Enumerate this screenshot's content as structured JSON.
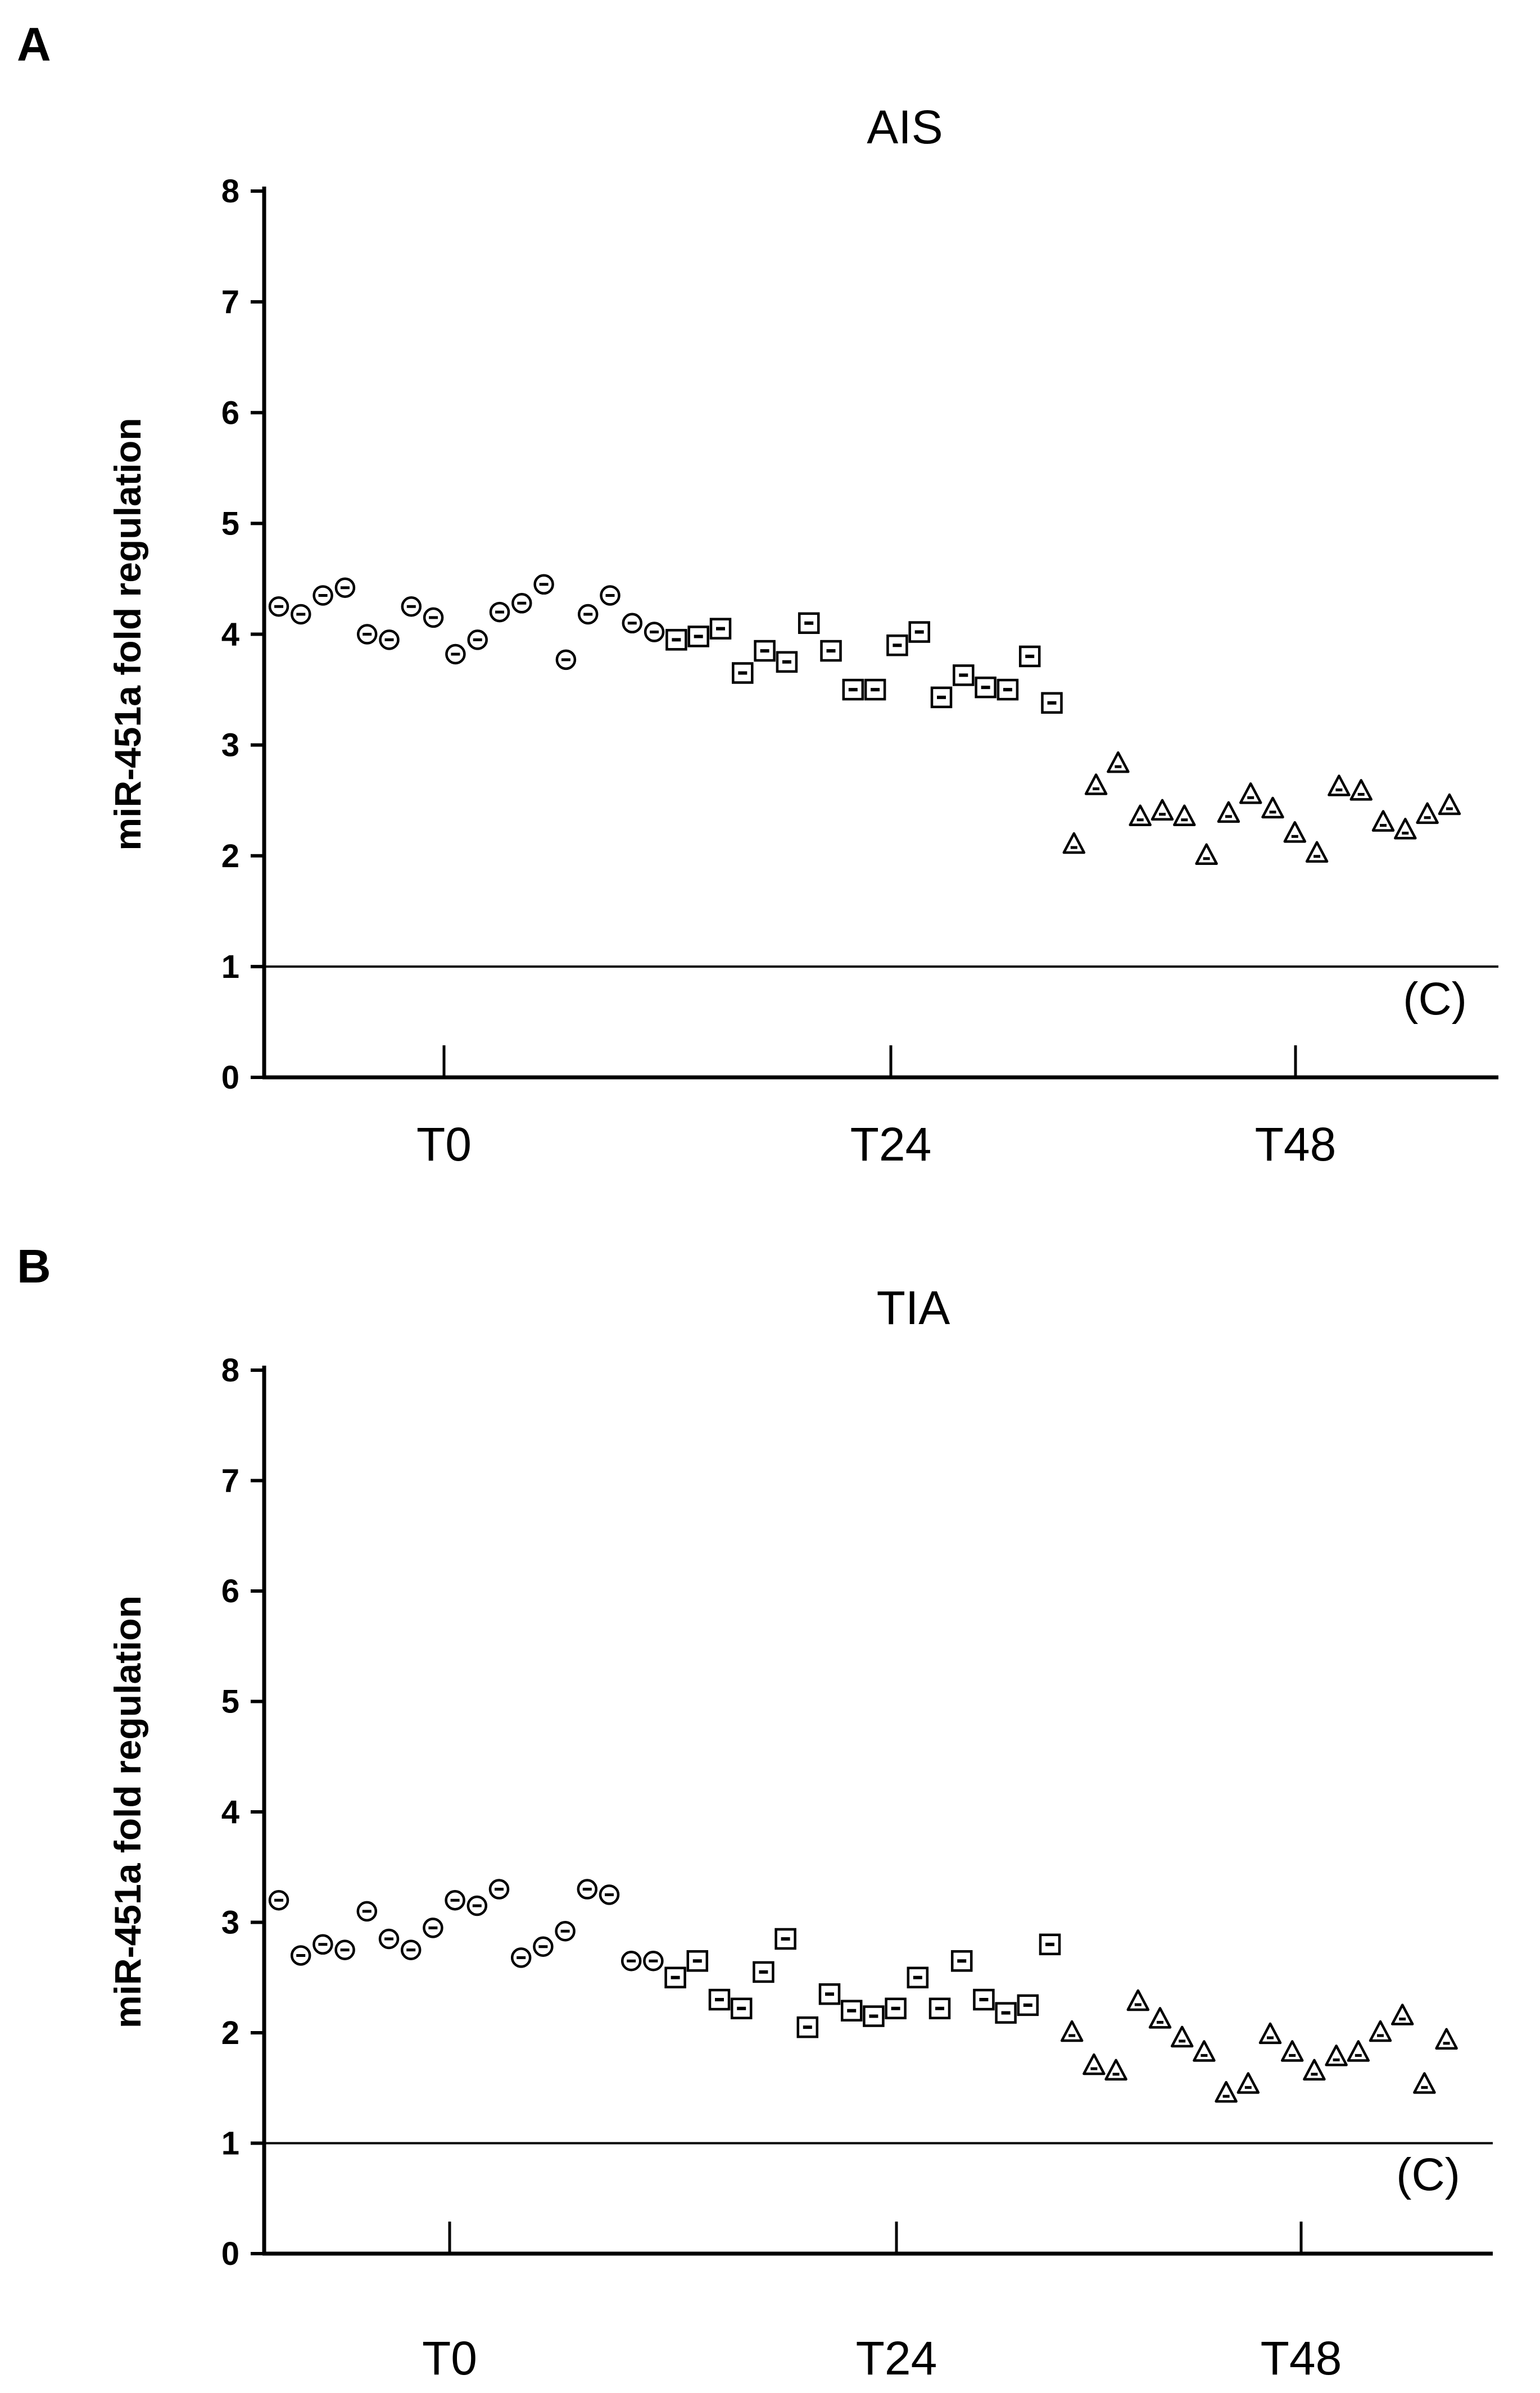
{
  "chart_data": [
    {
      "panel_label": "A",
      "type": "scatter",
      "title": "AIS",
      "xlabel": "",
      "ylabel": "miR-451a fold regulation",
      "ylim": [
        0,
        8
      ],
      "yticks": [
        "0",
        "1",
        "2",
        "3",
        "4",
        "5",
        "6",
        "7",
        "8"
      ],
      "control_line": {
        "y": 1,
        "label": "(C)"
      },
      "series": [
        {
          "name": "T0",
          "marker": "circle",
          "values": [
            4.25,
            4.18,
            4.35,
            4.42,
            4.0,
            3.95,
            4.25,
            4.15,
            3.82,
            3.95,
            4.2,
            4.28,
            4.45,
            3.77,
            4.18,
            4.35,
            4.1,
            4.02
          ]
        },
        {
          "name": "T24",
          "marker": "square",
          "values": [
            3.95,
            3.98,
            4.05,
            3.65,
            3.85,
            3.75,
            4.1,
            3.85,
            3.5,
            3.5,
            3.9,
            4.02,
            3.43,
            3.63,
            3.52,
            3.5,
            3.8,
            3.38
          ]
        },
        {
          "name": "T48",
          "marker": "triangle",
          "values": [
            2.1,
            2.63,
            2.83,
            2.35,
            2.4,
            2.35,
            2.0,
            2.38,
            2.55,
            2.42,
            2.2,
            2.02,
            2.62,
            2.58,
            2.3,
            2.23,
            2.37,
            2.45
          ]
        }
      ]
    },
    {
      "panel_label": "B",
      "type": "scatter",
      "title": "TIA",
      "xlabel": "",
      "ylabel": "miR-451a fold regulation",
      "ylim": [
        0,
        8
      ],
      "yticks": [
        "0",
        "1",
        "2",
        "3",
        "4",
        "5",
        "6",
        "7",
        "8"
      ],
      "control_line": {
        "y": 1,
        "label": "(C)"
      },
      "series": [
        {
          "name": "T0",
          "marker": "circle",
          "values": [
            3.2,
            2.7,
            2.8,
            2.75,
            3.1,
            2.85,
            2.75,
            2.95,
            3.2,
            3.15,
            3.3,
            2.68,
            2.78,
            2.92,
            3.3,
            3.25,
            2.65,
            2.65
          ]
        },
        {
          "name": "T24",
          "marker": "square",
          "values": [
            2.5,
            2.65,
            2.3,
            2.22,
            2.55,
            2.85,
            2.05,
            2.35,
            2.2,
            2.15,
            2.22,
            2.5,
            2.22,
            2.65,
            2.3,
            2.18,
            2.25,
            2.8
          ]
        },
        {
          "name": "T48",
          "marker": "triangle",
          "values": [
            2.0,
            1.7,
            1.65,
            2.28,
            2.12,
            1.95,
            1.82,
            1.45,
            1.53,
            1.98,
            1.82,
            1.65,
            1.78,
            1.82,
            2.0,
            2.15,
            1.53,
            1.93
          ]
        }
      ]
    }
  ]
}
